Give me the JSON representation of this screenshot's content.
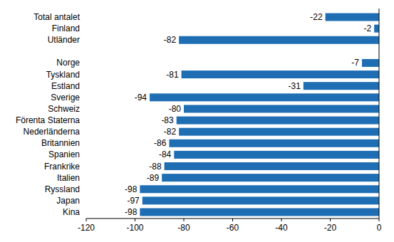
{
  "chart_data": {
    "type": "bar",
    "orientation": "horizontal",
    "categories": [
      "Total antalet",
      "Finland",
      "Utländer",
      null,
      "Norge",
      "Tyskland",
      "Estland",
      "Sverige",
      "Schweiz",
      "Förenta Staterna",
      "Nederländerna",
      "Britannien",
      "Spanien",
      "Frankrike",
      "Italien",
      "Ryssland",
      "Japan",
      "Kina"
    ],
    "values": [
      -22,
      -2,
      -82,
      null,
      -7,
      -81,
      -31,
      -94,
      -80,
      -83,
      -82,
      -86,
      -84,
      -88,
      -89,
      -98,
      -97,
      -98
    ],
    "color": "#1f6eb4",
    "xlim": [
      -120,
      0
    ],
    "xticks": [
      -120,
      -100,
      -80,
      -60,
      -40,
      -20,
      0
    ],
    "grid": false,
    "data_labels": true
  }
}
